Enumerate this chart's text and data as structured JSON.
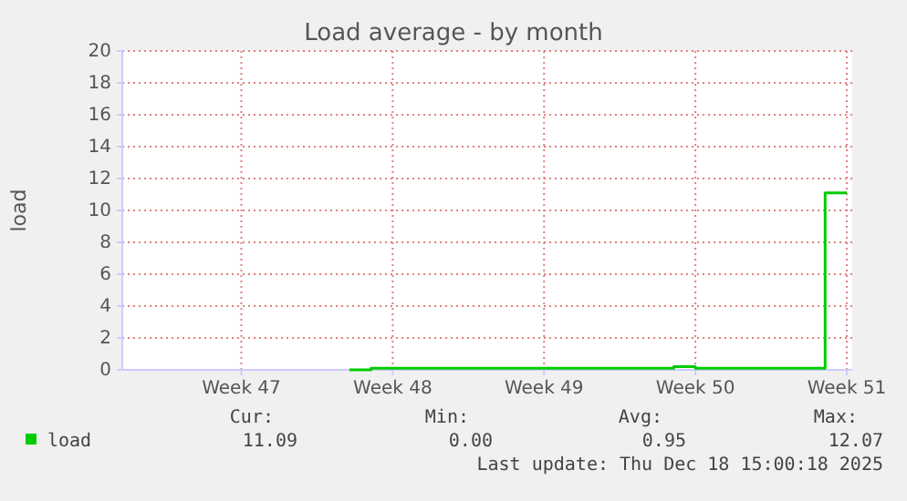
{
  "chart_data": {
    "type": "step",
    "title": "Load average - by month",
    "ylabel": "load",
    "categories": [
      null,
      null,
      null,
      null,
      null,
      "Week 47",
      null,
      null,
      null,
      null,
      null,
      null,
      "Week 48",
      null,
      null,
      null,
      null,
      null,
      null,
      "Week 49",
      null,
      null,
      null,
      null,
      null,
      null,
      "Week 50",
      null,
      null,
      null,
      null,
      null,
      null,
      "Week 51"
    ],
    "ylim": [
      0,
      20
    ],
    "yticks": [
      0,
      2,
      4,
      6,
      8,
      10,
      12,
      14,
      16,
      18,
      20
    ],
    "grid": true,
    "legend": "bottom",
    "series": [
      {
        "name": "load",
        "color": "#00cc00",
        "values": [
          null,
          null,
          null,
          null,
          null,
          null,
          null,
          null,
          null,
          null,
          0.0,
          0.1,
          0.1,
          0.1,
          0.1,
          0.1,
          0.1,
          0.1,
          0.1,
          0.1,
          0.1,
          0.1,
          0.1,
          0.1,
          0.1,
          0.2,
          0.1,
          0.1,
          0.1,
          0.1,
          0.1,
          0.1,
          11.1,
          11.1
        ]
      }
    ],
    "annotations": [
      "Cur:",
      "Min:",
      "Avg:",
      "Max:",
      "11.09",
      "0.00",
      "0.95",
      "12.07",
      "Last update: Thu Dec 18 15:00:18 2025"
    ]
  }
}
